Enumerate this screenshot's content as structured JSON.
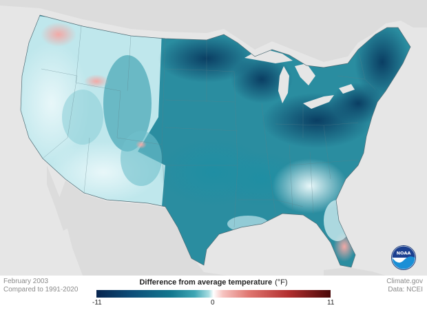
{
  "map": {
    "period": "February 2003",
    "baseline": "Compared to 1991-2020",
    "credit": "Climate.gov",
    "source": "Data: NCEI",
    "logo_text": "NOAA",
    "legend": {
      "title": "Difference from average temperature",
      "unit": "(°F)",
      "min": "-11",
      "mid": "0",
      "max": "11",
      "colors": [
        "#08254f",
        "#13788f",
        "#ffffff",
        "#e07670",
        "#4a0808"
      ]
    }
  }
}
